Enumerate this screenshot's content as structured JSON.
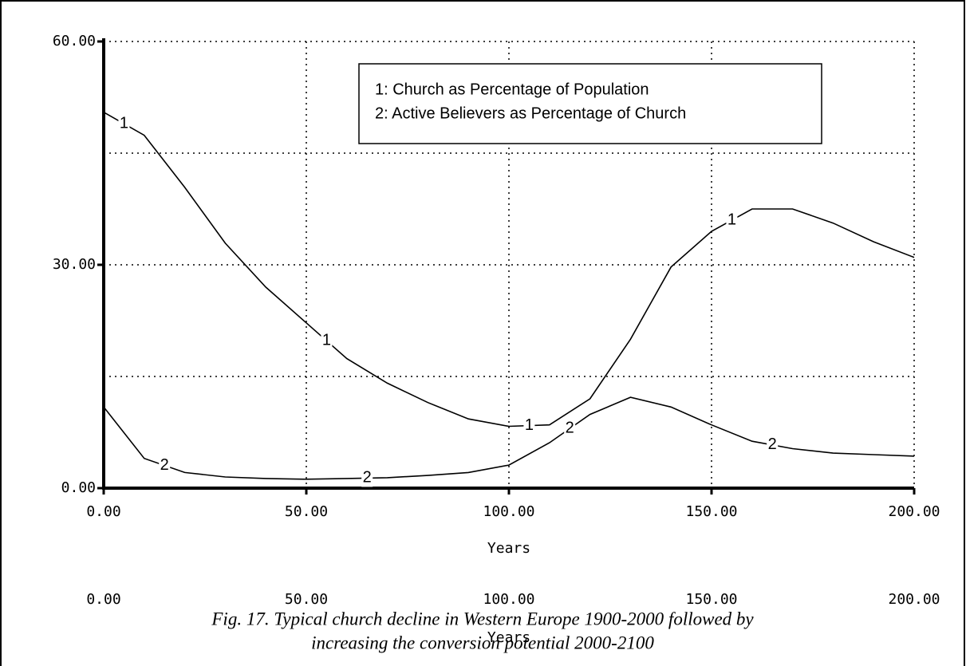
{
  "chart_data": {
    "type": "line",
    "xlabel": "Years",
    "x": [
      0,
      10,
      20,
      30,
      40,
      50,
      60,
      70,
      80,
      90,
      100,
      110,
      120,
      130,
      140,
      150,
      160,
      170,
      180,
      190,
      200
    ],
    "series": [
      {
        "name": "1: Church as Percentage of Population",
        "marker": "1",
        "color": "#000000",
        "values": [
          50.5,
          47.4,
          40.4,
          32.9,
          27,
          22.2,
          17.4,
          14.1,
          11.5,
          9.3,
          8.3,
          8.5,
          12,
          20,
          29.7,
          34.5,
          37.5,
          37.5,
          35.6,
          33.1,
          31
        ]
      },
      {
        "name": "2: Active Believers as Percentage of Church",
        "marker": "2",
        "color": "#000000",
        "values": [
          10.9,
          4,
          2.1,
          1.5,
          1.3,
          1.2,
          1.3,
          1.4,
          1.7,
          2.1,
          3.1,
          6.1,
          9.9,
          12.2,
          10.9,
          8.5,
          6.3,
          5.3,
          4.7,
          4.5,
          4.3
        ]
      }
    ],
    "xlim": [
      0,
      200
    ],
    "ylim": [
      0,
      60
    ],
    "xticks": [
      {
        "value": 0,
        "label": "0.00"
      },
      {
        "value": 50,
        "label": "50.00"
      },
      {
        "value": 100,
        "label": "100.00"
      },
      {
        "value": 150,
        "label": "150.00"
      },
      {
        "value": 200,
        "label": "200.00"
      }
    ],
    "yticks": [
      {
        "value": 0,
        "label": "0.00"
      },
      {
        "value": 30,
        "label": "30.00"
      },
      {
        "value": 60,
        "label": "60.00"
      }
    ],
    "yminor": [
      15,
      45
    ],
    "grid": true,
    "legend": "top-right",
    "ghost_axis": {
      "ticks": [
        "0.00",
        "50.00",
        "100.00",
        "150.00",
        "200.00"
      ],
      "label": "Years"
    },
    "caption": [
      "Fig. 17. Typical church decline in Western Europe 1900-2000 followed by",
      "increasing the conversion potential 2000-2100"
    ]
  }
}
